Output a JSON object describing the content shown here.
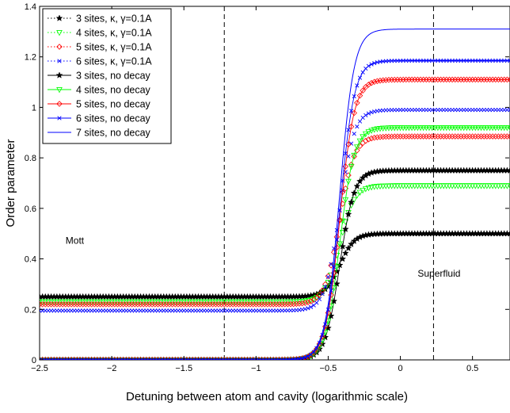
{
  "chart_data": {
    "type": "line",
    "title": "",
    "xlabel": "Detuning between atom and cavity (logarithmic scale)",
    "ylabel": "Order parameter",
    "xlim": [
      -2.5,
      0.76
    ],
    "ylim": [
      0,
      1.4
    ],
    "xticks": [
      -2.5,
      -2,
      -1.5,
      -1,
      -0.5,
      0,
      0.5
    ],
    "xtick_labels": [
      "−2.5",
      "−2",
      "−1.5",
      "−1",
      "−0.5",
      "0",
      "0.5"
    ],
    "yticks": [
      0,
      0.2,
      0.4,
      0.6,
      0.8,
      1,
      1.2,
      1.4
    ],
    "ytick_labels": [
      "0",
      "0.2",
      "0.4",
      "0.6",
      "0.8",
      "1",
      "1.2",
      "1.4"
    ],
    "vlines": [
      -1.22,
      0.23
    ],
    "annotations": [
      {
        "text": "Mott",
        "x": -2.32,
        "y": 0.46
      },
      {
        "text": "Superfluid",
        "x": 0.12,
        "y": 0.33
      }
    ],
    "legend_position": "top-left",
    "transition": {
      "center": -0.42,
      "width": 0.05
    },
    "series": [
      {
        "name": "3 sites, κ, γ=0.1A",
        "color": "#000000",
        "marker": "star",
        "dash": "dotted",
        "y_low": 0.25,
        "y_high": 0.5,
        "step": 0.02
      },
      {
        "name": "4 sites, κ, γ=0.1A",
        "color": "#00ff00",
        "marker": "triangle-down",
        "dash": "dotted",
        "y_low": 0.23,
        "y_high": 0.69,
        "step": 0.02
      },
      {
        "name": "5 sites, κ, γ=0.1A",
        "color": "#ff0000",
        "marker": "diamond",
        "dash": "dotted",
        "y_low": 0.22,
        "y_high": 0.885,
        "step": 0.02
      },
      {
        "name": "6 sites, κ, γ=0.1A",
        "color": "#0000ff",
        "marker": "x",
        "dash": "dotted",
        "y_low": 0.195,
        "y_high": 0.99,
        "step": 0.02
      },
      {
        "name": "3 sites, no decay",
        "color": "#000000",
        "marker": "star",
        "dash": "solid",
        "y_low": 0.0,
        "y_high": 0.75,
        "step": 0.02
      },
      {
        "name": "4 sites, no decay",
        "color": "#00ff00",
        "marker": "triangle-down",
        "dash": "solid",
        "y_low": 0.0,
        "y_high": 0.92,
        "step": 0.02
      },
      {
        "name": "5 sites, no decay",
        "color": "#ff0000",
        "marker": "diamond",
        "dash": "solid",
        "y_low": 0.0,
        "y_high": 1.11,
        "step": 0.02
      },
      {
        "name": "6 sites, no decay",
        "color": "#0000ff",
        "marker": "x",
        "dash": "solid",
        "y_low": 0.0,
        "y_high": 1.185,
        "step": 0.02
      },
      {
        "name": "7 sites, no decay",
        "color": "#0000ff",
        "marker": "none",
        "dash": "solid",
        "y_low": 0.0,
        "y_high": 1.31,
        "step": 0.02
      }
    ]
  }
}
